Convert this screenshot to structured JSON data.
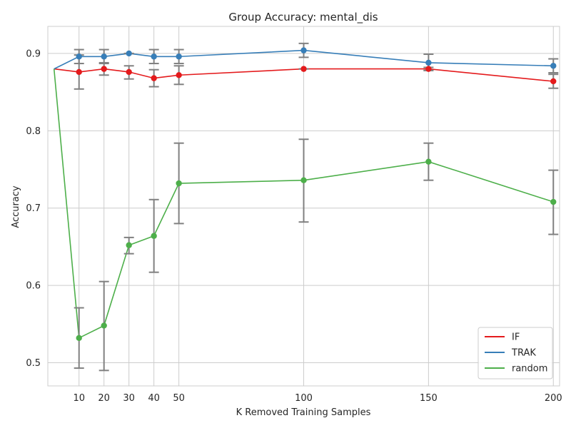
{
  "chart_data": {
    "type": "line",
    "title": "Group Accuracy: mental_dis",
    "xlabel": "K Removed Training Samples",
    "ylabel": "Accuracy",
    "xlim": [
      -2.5,
      202.5
    ],
    "ylim": [
      0.47,
      0.935
    ],
    "xticks": [
      10,
      20,
      30,
      40,
      50,
      100,
      150,
      200
    ],
    "xtick_labels": [
      "10",
      "20",
      "30",
      "40",
      "50",
      "100",
      "150",
      "200"
    ],
    "yticks": [
      0.5,
      0.6,
      0.7,
      0.8,
      0.9
    ],
    "ytick_labels": [
      "0.5",
      "0.6",
      "0.7",
      "0.8",
      "0.9"
    ],
    "grid": true,
    "legend_position": "bottom-right",
    "baseline": {
      "x": 0,
      "y": 0.88
    },
    "errorbar_color": "#808080",
    "series": [
      {
        "name": "IF",
        "color": "#e41a1c",
        "points": [
          {
            "x": 10,
            "y": 0.876,
            "low": 0.854,
            "high": 0.898
          },
          {
            "x": 20,
            "y": 0.88,
            "low": 0.872,
            "high": 0.888
          },
          {
            "x": 30,
            "y": 0.876,
            "low": 0.867,
            "high": 0.884
          },
          {
            "x": 40,
            "y": 0.868,
            "low": 0.857,
            "high": 0.879
          },
          {
            "x": 50,
            "y": 0.872,
            "low": 0.86,
            "high": 0.884
          },
          {
            "x": 100,
            "y": 0.88,
            "low": 0.88,
            "high": 0.88
          },
          {
            "x": 150,
            "y": 0.88,
            "low": 0.878,
            "high": 0.882
          },
          {
            "x": 200,
            "y": 0.864,
            "low": 0.855,
            "high": 0.873
          }
        ]
      },
      {
        "name": "TRAK",
        "color": "#377eb8",
        "points": [
          {
            "x": 10,
            "y": 0.896,
            "low": 0.887,
            "high": 0.905
          },
          {
            "x": 20,
            "y": 0.896,
            "low": 0.887,
            "high": 0.905
          },
          {
            "x": 30,
            "y": 0.9,
            "low": 0.9,
            "high": 0.9
          },
          {
            "x": 40,
            "y": 0.896,
            "low": 0.887,
            "high": 0.905
          },
          {
            "x": 50,
            "y": 0.896,
            "low": 0.887,
            "high": 0.905
          },
          {
            "x": 100,
            "y": 0.904,
            "low": 0.895,
            "high": 0.913
          },
          {
            "x": 150,
            "y": 0.888,
            "low": 0.878,
            "high": 0.899
          },
          {
            "x": 200,
            "y": 0.884,
            "low": 0.875,
            "high": 0.893
          }
        ]
      },
      {
        "name": "random",
        "color": "#4daf4a",
        "points": [
          {
            "x": 10,
            "y": 0.532,
            "low": 0.493,
            "high": 0.571
          },
          {
            "x": 20,
            "y": 0.548,
            "low": 0.49,
            "high": 0.605
          },
          {
            "x": 30,
            "y": 0.652,
            "low": 0.641,
            "high": 0.662
          },
          {
            "x": 40,
            "y": 0.664,
            "low": 0.617,
            "high": 0.711
          },
          {
            "x": 50,
            "y": 0.732,
            "low": 0.68,
            "high": 0.784
          },
          {
            "x": 100,
            "y": 0.736,
            "low": 0.682,
            "high": 0.789
          },
          {
            "x": 150,
            "y": 0.76,
            "low": 0.736,
            "high": 0.784
          },
          {
            "x": 200,
            "y": 0.708,
            "low": 0.666,
            "high": 0.749
          }
        ]
      }
    ]
  }
}
